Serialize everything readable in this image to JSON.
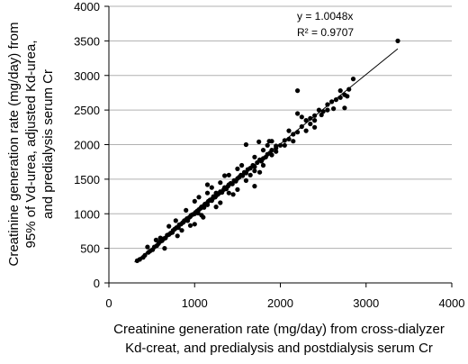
{
  "chart_data": {
    "type": "scatter",
    "title": "",
    "xlabel_lines": [
      "Creatinine generation rate (mg/day) from cross-dialyzer",
      "Kd-creat, and predialysis and postdialysis serum Cr"
    ],
    "ylabel_lines": [
      "Creatinine generation rate (mg/day) from",
      "95% of Vd-urea, adjusted Kd-urea,",
      "and predialysis serum Cr"
    ],
    "xlim": [
      0,
      4000
    ],
    "ylim": [
      0,
      4000
    ],
    "xticks": [
      "0",
      "1000",
      "2000",
      "3000",
      "4000"
    ],
    "yticks": [
      "0",
      "500",
      "1000",
      "1500",
      "2000",
      "2500",
      "3000",
      "3500",
      "4000"
    ],
    "grid": "horizontal",
    "trendline": {
      "slope": 1.0048,
      "x_range": [
        300,
        3370
      ]
    },
    "annotations": {
      "equation": "y = 1.0048x",
      "r_squared": "R² = 0.9707"
    },
    "series": [
      {
        "points": [
          [
            330,
            320
          ],
          [
            360,
            340
          ],
          [
            400,
            370
          ],
          [
            420,
            400
          ],
          [
            460,
            440
          ],
          [
            480,
            460
          ],
          [
            510,
            480
          ],
          [
            530,
            520
          ],
          [
            560,
            540
          ],
          [
            580,
            570
          ],
          [
            600,
            600
          ],
          [
            620,
            610
          ],
          [
            640,
            640
          ],
          [
            660,
            650
          ],
          [
            680,
            690
          ],
          [
            700,
            700
          ],
          [
            720,
            720
          ],
          [
            740,
            730
          ],
          [
            750,
            760
          ],
          [
            770,
            780
          ],
          [
            790,
            800
          ],
          [
            810,
            800
          ],
          [
            820,
            840
          ],
          [
            840,
            850
          ],
          [
            860,
            870
          ],
          [
            870,
            880
          ],
          [
            880,
            900
          ],
          [
            900,
            910
          ],
          [
            910,
            930
          ],
          [
            920,
            900
          ],
          [
            940,
            950
          ],
          [
            950,
            960
          ],
          [
            960,
            980
          ],
          [
            980,
            990
          ],
          [
            1000,
            1000
          ],
          [
            1010,
            1020
          ],
          [
            1030,
            1040
          ],
          [
            1040,
            1010
          ],
          [
            1050,
            1060
          ],
          [
            1070,
            1080
          ],
          [
            1080,
            1100
          ],
          [
            1100,
            1110
          ],
          [
            1110,
            1090
          ],
          [
            1120,
            1140
          ],
          [
            1140,
            1150
          ],
          [
            1150,
            1130
          ],
          [
            1160,
            1180
          ],
          [
            1180,
            1200
          ],
          [
            1200,
            1190
          ],
          [
            1210,
            1220
          ],
          [
            1220,
            1250
          ],
          [
            1240,
            1240
          ],
          [
            1250,
            1260
          ],
          [
            1270,
            1280
          ],
          [
            1290,
            1300
          ],
          [
            1300,
            1320
          ],
          [
            1320,
            1310
          ],
          [
            1340,
            1350
          ],
          [
            1350,
            1380
          ],
          [
            1370,
            1360
          ],
          [
            1390,
            1400
          ],
          [
            1400,
            1420
          ],
          [
            1420,
            1440
          ],
          [
            1440,
            1430
          ],
          [
            1460,
            1480
          ],
          [
            1480,
            1470
          ],
          [
            1500,
            1510
          ],
          [
            1520,
            1530
          ],
          [
            1540,
            1560
          ],
          [
            1560,
            1550
          ],
          [
            1580,
            1600
          ],
          [
            1600,
            1590
          ],
          [
            1620,
            1640
          ],
          [
            1650,
            1660
          ],
          [
            1680,
            1700
          ],
          [
            1700,
            1680
          ],
          [
            1730,
            1740
          ],
          [
            1760,
            1780
          ],
          [
            1780,
            1760
          ],
          [
            1800,
            1800
          ],
          [
            1830,
            1820
          ],
          [
            1850,
            1860
          ],
          [
            1880,
            1880
          ],
          [
            1900,
            1920
          ],
          [
            1950,
            1950
          ],
          [
            2000,
            1990
          ],
          [
            2050,
            2060
          ],
          [
            2100,
            2080
          ],
          [
            2150,
            2150
          ],
          [
            2200,
            2180
          ],
          [
            2250,
            2260
          ],
          [
            2300,
            2350
          ],
          [
            2350,
            2300
          ],
          [
            2400,
            2420
          ],
          [
            2450,
            2500
          ],
          [
            2500,
            2480
          ],
          [
            2550,
            2580
          ],
          [
            2600,
            2620
          ],
          [
            2650,
            2650
          ],
          [
            2700,
            2680
          ],
          [
            2750,
            2720
          ],
          [
            2800,
            2800
          ],
          [
            1050,
            1240
          ],
          [
            1200,
            1380
          ],
          [
            1300,
            1160
          ],
          [
            1400,
            1560
          ],
          [
            1250,
            1100
          ],
          [
            1500,
            1650
          ],
          [
            1600,
            1480
          ],
          [
            1700,
            1820
          ],
          [
            1800,
            1700
          ],
          [
            900,
            1050
          ],
          [
            950,
            830
          ],
          [
            1150,
            1300
          ],
          [
            1100,
            950
          ],
          [
            1700,
            1400
          ],
          [
            1450,
            1280
          ],
          [
            2200,
            2780
          ],
          [
            1850,
            1990
          ],
          [
            1950,
            1980
          ],
          [
            2700,
            2780
          ],
          [
            2750,
            2530
          ],
          [
            2780,
            2700
          ],
          [
            2200,
            2450
          ],
          [
            2300,
            2200
          ],
          [
            2350,
            2380
          ],
          [
            2400,
            2250
          ],
          [
            2480,
            2430
          ],
          [
            2620,
            2520
          ],
          [
            2850,
            2950
          ],
          [
            3370,
            3500
          ],
          [
            1600,
            2000
          ],
          [
            1750,
            2040
          ],
          [
            1870,
            2050
          ],
          [
            1900,
            1850
          ],
          [
            2050,
            1990
          ],
          [
            1500,
            1350
          ],
          [
            1350,
            1550
          ],
          [
            1150,
            1420
          ],
          [
            1000,
            850
          ],
          [
            800,
            680
          ],
          [
            700,
            820
          ],
          [
            600,
            650
          ],
          [
            650,
            500
          ],
          [
            550,
            620
          ],
          [
            450,
            520
          ],
          [
            780,
            900
          ],
          [
            850,
            760
          ],
          [
            1000,
            1180
          ],
          [
            1080,
            980
          ],
          [
            1250,
            1300
          ],
          [
            1300,
            1450
          ],
          [
            1400,
            1300
          ],
          [
            1550,
            1700
          ],
          [
            1650,
            1560
          ],
          [
            1700,
            1620
          ],
          [
            1760,
            1600
          ],
          [
            1800,
            1920
          ],
          [
            1900,
            2050
          ],
          [
            1950,
            1900
          ],
          [
            2100,
            2200
          ],
          [
            2150,
            2050
          ],
          [
            2250,
            2400
          ],
          [
            2400,
            2350
          ],
          [
            2550,
            2500
          ]
        ]
      }
    ]
  }
}
